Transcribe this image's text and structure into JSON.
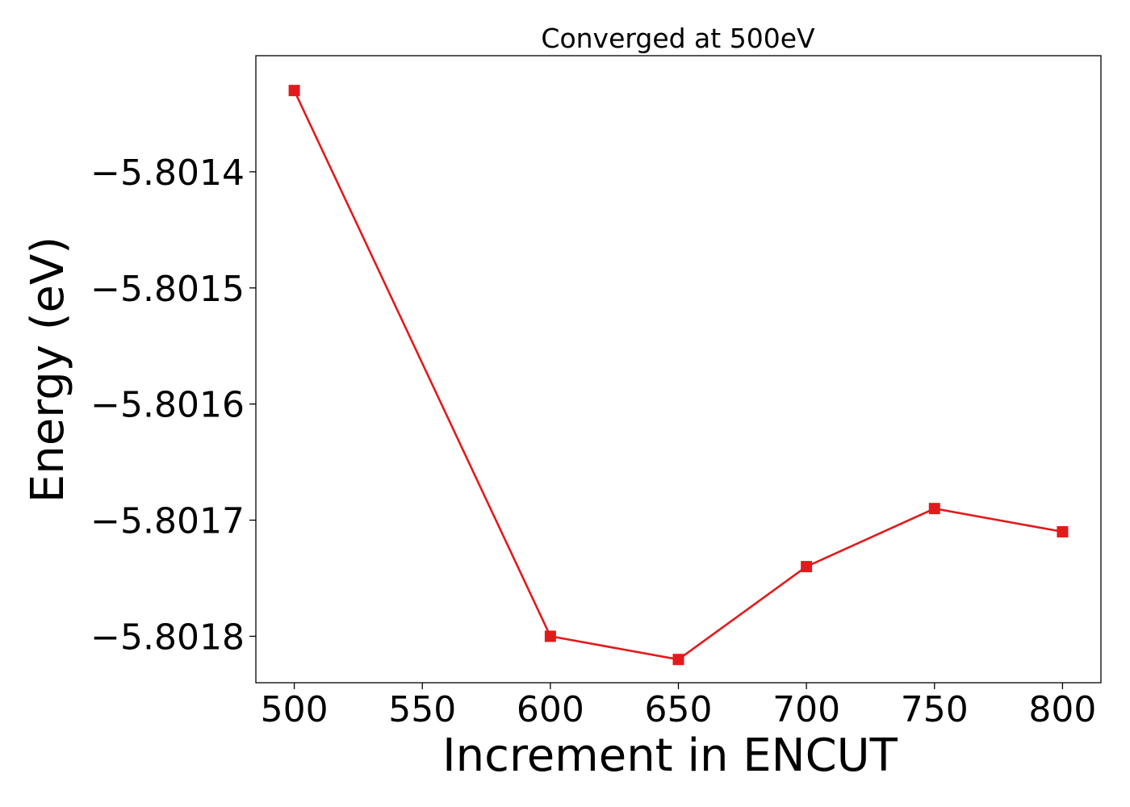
{
  "chart_data": {
    "type": "line",
    "title": "Converged at 500eV",
    "xlabel": "Increment in ENCUT",
    "ylabel": "Energy (eV)",
    "x": [
      500,
      600,
      650,
      700,
      750,
      800
    ],
    "series": [
      {
        "values": [
          -5.80133,
          -5.8018,
          -5.80182,
          -5.80174,
          -5.80169,
          -5.80171
        ],
        "color": "#e31a1c",
        "marker": "square"
      }
    ],
    "x_ticks": [
      500,
      550,
      600,
      650,
      700,
      750,
      800
    ],
    "x_tick_labels": [
      "500",
      "550",
      "600",
      "650",
      "700",
      "750",
      "800"
    ],
    "y_ticks": [
      -5.8014,
      -5.8015,
      -5.8016,
      -5.8017,
      -5.8018
    ],
    "y_tick_labels": [
      "−5.8014",
      "−5.8015",
      "−5.8016",
      "−5.8017",
      "−5.8018"
    ],
    "xlim": [
      485,
      815
    ],
    "ylim": [
      -5.80184,
      -5.8013
    ],
    "grid": false,
    "legend": "none"
  }
}
